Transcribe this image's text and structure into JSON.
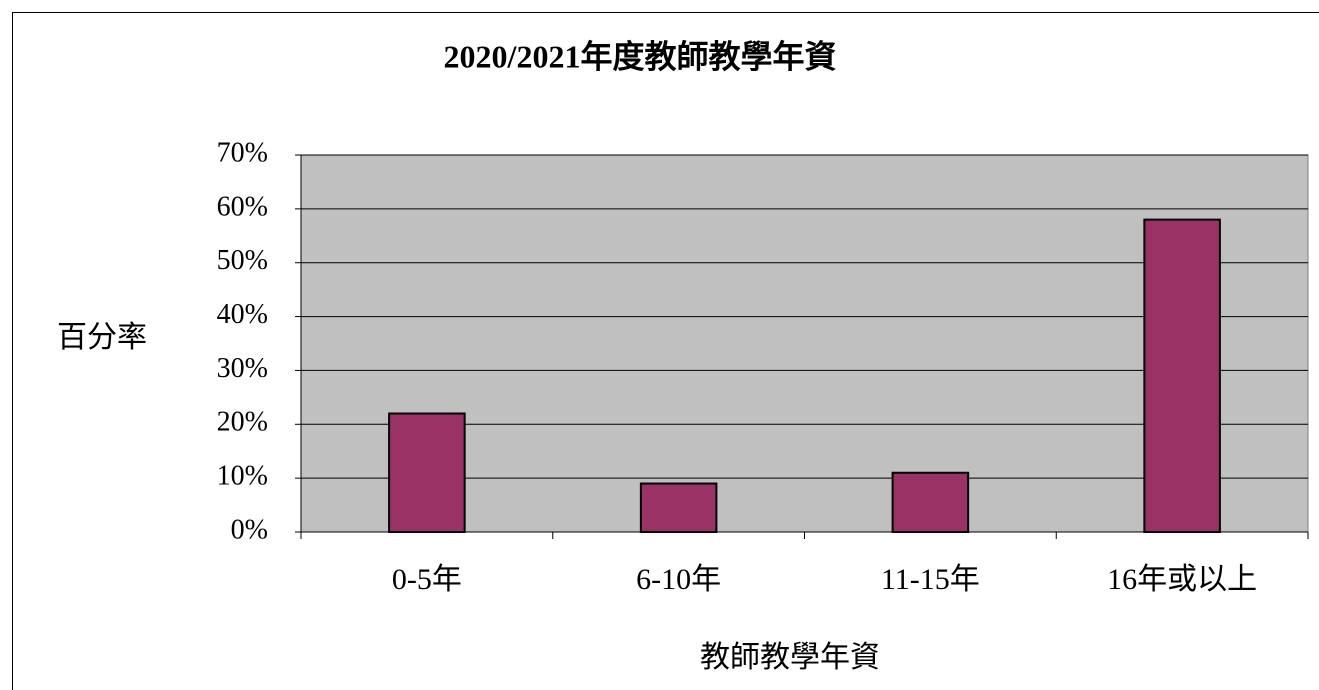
{
  "chart_data": {
    "type": "bar",
    "title": "2020/2021年度教師教學年資",
    "x_label": "教師教學年資",
    "y_label": "百分率",
    "categories": [
      "0-5年",
      "6-10年",
      "11-15年",
      "16年或以上"
    ],
    "values": [
      22,
      9,
      11,
      58
    ],
    "color": "#993366",
    "ylim": [
      0,
      70
    ],
    "yticks": [
      {
        "value": 0,
        "label": "0%"
      },
      {
        "value": 10,
        "label": "10%"
      },
      {
        "value": 20,
        "label": "20%"
      },
      {
        "value": 30,
        "label": "30%"
      },
      {
        "value": 40,
        "label": "40%"
      },
      {
        "value": 50,
        "label": "50%"
      },
      {
        "value": 60,
        "label": "60%"
      },
      {
        "value": 70,
        "label": "70%"
      }
    ],
    "grid": true
  }
}
